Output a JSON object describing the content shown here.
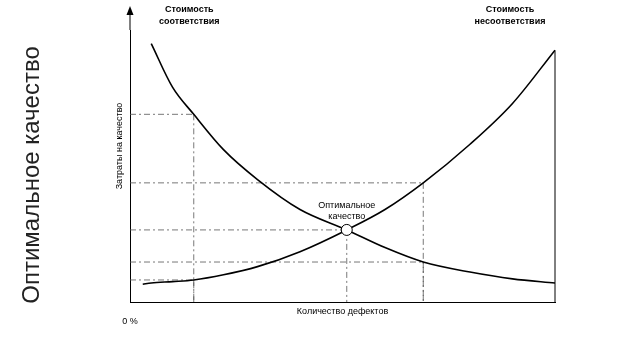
{
  "chart_data": {
    "type": "line",
    "title": "Оптимальное качество",
    "x_label": "Количество дефектов",
    "y_label": "Затраты на качество",
    "x": [
      3,
      5,
      10,
      15,
      22,
      30,
      40,
      51,
      60,
      69,
      80,
      90,
      100
    ],
    "series": [
      {
        "name": "Стоимость соответствия",
        "color": "#000000",
        "values": [
          null,
          95,
          79,
          69,
          56,
          45,
          34,
          26.5,
          20,
          14.7,
          11,
          8.5,
          7
        ]
      },
      {
        "name": "Стоимость несоответствия",
        "color": "#000000",
        "values": [
          6.5,
          7,
          7.5,
          8.1,
          10,
          13,
          18.5,
          26.5,
          34,
          43.8,
          58,
          73,
          92.6
        ]
      }
    ],
    "annotations": [
      {
        "text": "Оптимальное качество",
        "x": 51,
        "y": 26.5
      }
    ],
    "guide_points": [
      [
        15,
        69
      ],
      [
        15,
        8.1
      ],
      [
        51,
        26.5
      ],
      [
        69,
        43.8
      ],
      [
        69,
        14.7
      ]
    ],
    "xlim": [
      0,
      100
    ],
    "ylim": [
      0,
      100
    ],
    "xticks": [
      {
        "value": 0,
        "label": "0 %"
      }
    ],
    "yticks": [],
    "tick_labels": "x",
    "grid": false
  }
}
